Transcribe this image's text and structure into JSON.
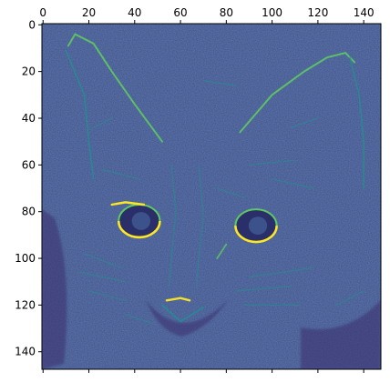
{
  "chart_data": {
    "type": "heatmap",
    "title": "",
    "xlabel": "",
    "ylabel": "",
    "image_size": [
      148,
      148
    ],
    "x_axis_position": "top",
    "xlim": [
      -0.5,
      147.5
    ],
    "ylim": [
      147.5,
      -0.5
    ],
    "x_ticks": [
      0,
      20,
      40,
      60,
      80,
      100,
      120,
      140
    ],
    "y_ticks": [
      0,
      20,
      40,
      60,
      80,
      100,
      120,
      140
    ],
    "colormap": "viridis",
    "grid": false,
    "legend": "none",
    "content": "feature-activation map of a cat face; bright edges on ears, eye outlines, whiskers and nose",
    "colors": {
      "low": "#440154",
      "mid_low": "#3b528b",
      "mid": "#21918c",
      "mid_high": "#5ec962",
      "high": "#fde725",
      "background_level": "#3c4f8a"
    },
    "eyes": [
      {
        "side": "left",
        "center": [
          42,
          84
        ]
      },
      {
        "side": "right",
        "center": [
          93,
          86
        ]
      }
    ],
    "ears": [
      {
        "side": "left",
        "tip": [
          14,
          4
        ]
      },
      {
        "side": "right",
        "tip": [
          132,
          12
        ]
      }
    ],
    "nose": [
      60,
      118
    ]
  }
}
